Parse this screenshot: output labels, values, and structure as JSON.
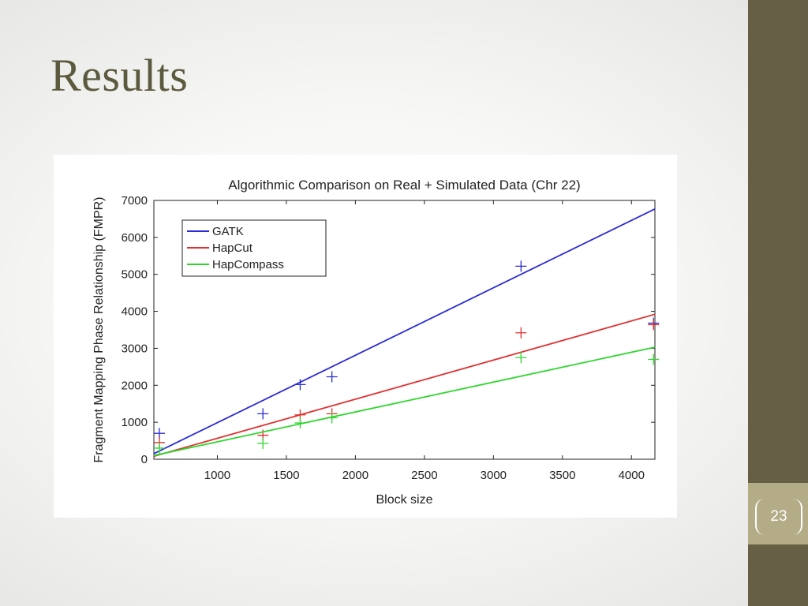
{
  "slide": {
    "title": "Results",
    "page_number": "23",
    "accent_color": "#665f45",
    "accent_light": "#b3ac86"
  },
  "chart_data": {
    "type": "scatter",
    "title": "Algorithmic Comparison on Real + Simulated Data (Chr 22)",
    "xlabel": "Block size",
    "ylabel": "Fragment Mapping Phase Relationship (FMPR)",
    "xlim": [
      540,
      4170
    ],
    "ylim": [
      0,
      7000
    ],
    "x_ticks": [
      1000,
      1500,
      2000,
      2500,
      3000,
      3500,
      4000
    ],
    "y_ticks": [
      0,
      1000,
      2000,
      3000,
      4000,
      5000,
      6000,
      7000
    ],
    "grid": false,
    "legend_position": "top-left",
    "marker": "+",
    "series": [
      {
        "name": "GATK",
        "color": "#2b2bd6",
        "points": [
          [
            580,
            700
          ],
          [
            1330,
            1230
          ],
          [
            1600,
            2020
          ],
          [
            1830,
            2230
          ],
          [
            3200,
            5220
          ],
          [
            4160,
            3680
          ]
        ],
        "fit": [
          [
            540,
            150
          ],
          [
            4170,
            6770
          ]
        ]
      },
      {
        "name": "HapCut",
        "color": "#e03030",
        "points": [
          [
            580,
            450
          ],
          [
            1330,
            650
          ],
          [
            1600,
            1200
          ],
          [
            1830,
            1230
          ],
          [
            3200,
            3420
          ],
          [
            4160,
            3640
          ]
        ],
        "fit": [
          [
            540,
            80
          ],
          [
            4170,
            3920
          ]
        ]
      },
      {
        "name": "HapCompass",
        "color": "#2fd62f",
        "points": [
          [
            580,
            300
          ],
          [
            1330,
            430
          ],
          [
            1600,
            980
          ],
          [
            1830,
            1120
          ],
          [
            3200,
            2750
          ],
          [
            4160,
            2700
          ]
        ],
        "fit": [
          [
            540,
            100
          ],
          [
            4170,
            3030
          ]
        ]
      }
    ]
  }
}
